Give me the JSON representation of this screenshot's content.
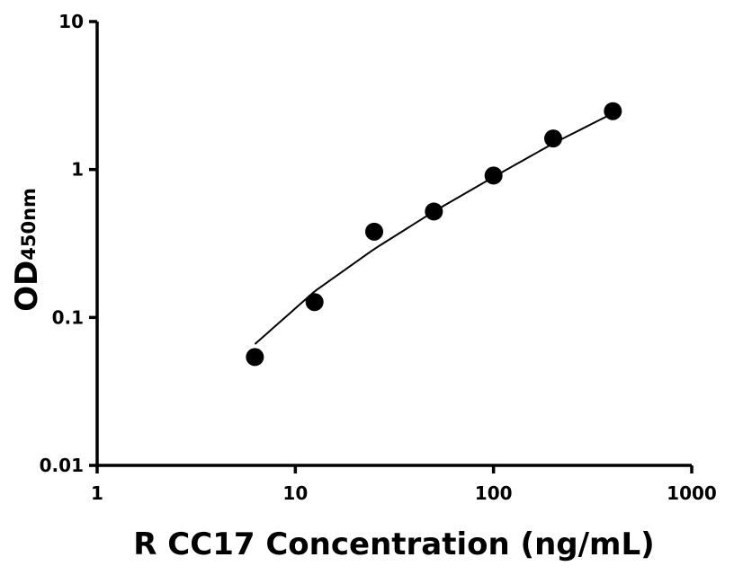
{
  "chart_data": {
    "type": "scatter",
    "xlabel": "R CC17 Concentration (ng/mL)",
    "ylabel": {
      "main": "OD",
      "subscript": "450nm"
    },
    "x_scale": "log",
    "y_scale": "log",
    "xlim": [
      1,
      1000
    ],
    "ylim": [
      0.01,
      10
    ],
    "x_ticks": [
      1,
      10,
      100,
      1000
    ],
    "x_tick_labels": [
      "1",
      "10",
      "100",
      "1000"
    ],
    "y_ticks": [
      0.01,
      0.1,
      1,
      10
    ],
    "y_tick_labels": [
      "0.01",
      "0.1",
      "1",
      "10"
    ],
    "grid": false,
    "series": [
      {
        "points": [
          {
            "x": 6.25,
            "y": 0.054
          },
          {
            "x": 12.5,
            "y": 0.127
          },
          {
            "x": 25,
            "y": 0.38
          },
          {
            "x": 50,
            "y": 0.52
          },
          {
            "x": 100,
            "y": 0.91
          },
          {
            "x": 200,
            "y": 1.62
          },
          {
            "x": 400,
            "y": 2.48
          }
        ],
        "color": "#000000"
      }
    ],
    "fit_curve": {
      "x_range": [
        6.25,
        400
      ],
      "points": [
        {
          "x": 6.25,
          "y": 0.066
        },
        {
          "x": 12.5,
          "y": 0.15
        },
        {
          "x": 25,
          "y": 0.29
        },
        {
          "x": 50,
          "y": 0.52
        },
        {
          "x": 100,
          "y": 0.89
        },
        {
          "x": 200,
          "y": 1.5
        },
        {
          "x": 400,
          "y": 2.4
        }
      ],
      "color": "#000000"
    }
  }
}
